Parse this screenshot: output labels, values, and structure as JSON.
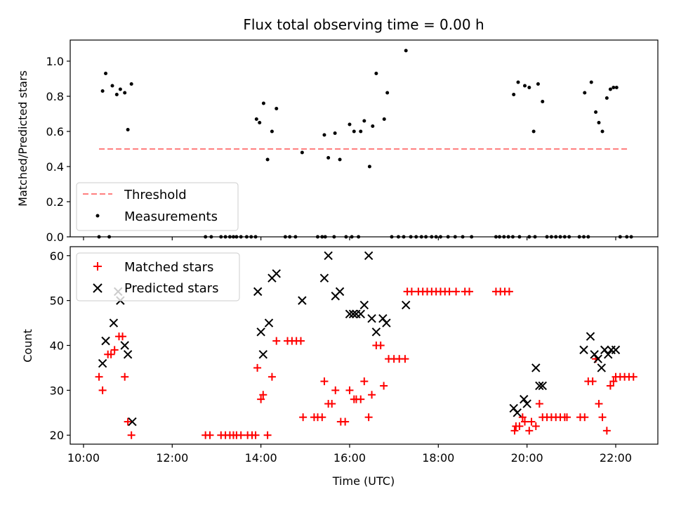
{
  "chart_data": [
    {
      "type": "scatter",
      "title": "Flux total observing time = 0.00 h",
      "xlabel": "",
      "ylabel": "Matched/Predicted stars",
      "xlim": [
        9.7,
        22.95
      ],
      "ylim": [
        0,
        1.12
      ],
      "yticks": [
        "0.0",
        "0.2",
        "0.4",
        "0.6",
        "0.8",
        "1.0"
      ],
      "legend_position": "lower-left",
      "threshold": {
        "name": "Threshold",
        "value": 0.5,
        "x": [
          10.35,
          22.3
        ],
        "color": "#ff7f7f"
      },
      "series": [
        {
          "name": "Measurements",
          "color": "#000000",
          "x": [
            10.43,
            10.5,
            10.65,
            10.75,
            10.83,
            10.93,
            11.0,
            11.08,
            13.9,
            13.97,
            14.06,
            14.15,
            14.25,
            14.35,
            14.93,
            15.43,
            15.52,
            15.67,
            15.78,
            16.0,
            16.1,
            16.25,
            16.33,
            16.45,
            16.52,
            16.6,
            16.78,
            16.85,
            17.27,
            19.7,
            19.8,
            19.95,
            20.05,
            20.15,
            20.25,
            20.35,
            21.3,
            21.45,
            21.55,
            21.62,
            21.7,
            21.8,
            21.88,
            21.95,
            22.02,
            10.35,
            10.58,
            12.75,
            12.88,
            13.1,
            13.2,
            13.3,
            13.38,
            13.45,
            13.55,
            13.68,
            13.78,
            13.88,
            14.55,
            14.65,
            14.78,
            15.28,
            15.38,
            15.45,
            15.65,
            15.92,
            16.05,
            16.2,
            16.95,
            17.1,
            17.22,
            17.38,
            17.5,
            17.62,
            17.72,
            17.85,
            17.95,
            18.05,
            18.22,
            18.38,
            18.55,
            18.75,
            19.3,
            19.38,
            19.48,
            19.58,
            19.68,
            19.83,
            20.05,
            20.18,
            20.45,
            20.55,
            20.65,
            20.75,
            20.85,
            20.95,
            21.18,
            21.28,
            21.38,
            22.1,
            22.25,
            22.35
          ],
          "y": [
            0.83,
            0.93,
            0.86,
            0.81,
            0.84,
            0.82,
            0.61,
            0.87,
            0.67,
            0.65,
            0.76,
            0.44,
            0.6,
            0.73,
            0.48,
            0.58,
            0.45,
            0.59,
            0.44,
            0.64,
            0.6,
            0.6,
            0.66,
            0.4,
            0.63,
            0.93,
            0.67,
            0.82,
            1.06,
            0.81,
            0.88,
            0.86,
            0.85,
            0.6,
            0.87,
            0.77,
            0.82,
            0.88,
            0.71,
            0.65,
            0.6,
            0.79,
            0.84,
            0.85,
            0.85,
            0,
            0,
            0,
            0,
            0,
            0,
            0,
            0,
            0,
            0,
            0,
            0,
            0,
            0,
            0,
            0,
            0,
            0,
            0,
            0,
            0,
            0,
            0,
            0,
            0,
            0,
            0,
            0,
            0,
            0,
            0,
            0,
            0,
            0,
            0,
            0,
            0,
            0,
            0,
            0,
            0,
            0,
            0,
            0,
            0,
            0,
            0,
            0,
            0,
            0,
            0,
            0,
            0,
            0,
            0,
            0,
            0
          ]
        }
      ]
    },
    {
      "type": "scatter",
      "title": "",
      "xlabel": "Time (UTC)",
      "ylabel": "Count",
      "xlim": [
        9.7,
        22.95
      ],
      "ylim": [
        18,
        62
      ],
      "yticks": [
        "20",
        "30",
        "40",
        "50",
        "60"
      ],
      "xticks": [
        {
          "value": 10,
          "label": "10:00"
        },
        {
          "value": 12,
          "label": "12:00"
        },
        {
          "value": 14,
          "label": "14:00"
        },
        {
          "value": 16,
          "label": "16:00"
        },
        {
          "value": 18,
          "label": "18:00"
        },
        {
          "value": 20,
          "label": "20:00"
        },
        {
          "value": 22,
          "label": "22:00"
        }
      ],
      "legend_position": "upper-left",
      "series": [
        {
          "name": "Matched stars",
          "marker": "plus",
          "color": "#ff0000",
          "x": [
            10.35,
            10.43,
            10.55,
            10.62,
            10.7,
            10.8,
            10.88,
            10.93,
            11.0,
            11.08,
            12.75,
            12.85,
            13.1,
            13.2,
            13.3,
            13.38,
            13.45,
            13.55,
            13.7,
            13.8,
            13.88,
            13.92,
            14.0,
            14.05,
            14.15,
            14.25,
            14.35,
            14.6,
            14.7,
            14.8,
            14.9,
            14.95,
            15.2,
            15.28,
            15.38,
            15.43,
            15.52,
            15.6,
            15.68,
            15.8,
            15.9,
            16.0,
            16.1,
            16.15,
            16.25,
            16.33,
            16.43,
            16.5,
            16.6,
            16.7,
            16.77,
            16.88,
            17.0,
            17.12,
            17.25,
            17.3,
            17.4,
            17.55,
            17.65,
            17.75,
            17.85,
            17.95,
            18.05,
            18.15,
            18.25,
            18.4,
            18.6,
            18.7,
            19.3,
            19.4,
            19.5,
            19.6,
            19.72,
            19.75,
            19.83,
            19.9,
            19.95,
            20.05,
            20.1,
            20.2,
            20.28,
            20.35,
            20.45,
            20.55,
            20.65,
            20.75,
            20.85,
            20.9,
            21.2,
            21.3,
            21.38,
            21.48,
            21.55,
            21.62,
            21.7,
            21.8,
            21.88,
            21.95,
            22.0,
            22.1,
            22.2,
            22.3,
            22.4
          ],
          "y": [
            33,
            30,
            38,
            38,
            39,
            42,
            42,
            33,
            23,
            20,
            20,
            20,
            20,
            20,
            20,
            20,
            20,
            20,
            20,
            20,
            20,
            35,
            28,
            29,
            20,
            33,
            41,
            41,
            41,
            41,
            41,
            24,
            24,
            24,
            24,
            32,
            27,
            27,
            30,
            23,
            23,
            30,
            28,
            28,
            28,
            32,
            24,
            29,
            40,
            40,
            31,
            37,
            37,
            37,
            37,
            52,
            52,
            52,
            52,
            52,
            52,
            52,
            52,
            52,
            52,
            52,
            52,
            52,
            52,
            52,
            52,
            52,
            21,
            22,
            22,
            24,
            23,
            21,
            23,
            22,
            27,
            24,
            24,
            24,
            24,
            24,
            24,
            24,
            24,
            24,
            32,
            32,
            37,
            27,
            24,
            21,
            31,
            32,
            33,
            33,
            33,
            33,
            33
          ]
        },
        {
          "name": "Predicted stars",
          "marker": "x",
          "color": "#000000",
          "x": [
            10.43,
            10.5,
            10.68,
            10.78,
            10.83,
            10.93,
            11.0,
            11.1,
            13.93,
            14.0,
            14.05,
            14.18,
            14.25,
            14.35,
            14.93,
            15.43,
            15.52,
            15.68,
            15.78,
            16.0,
            16.08,
            16.15,
            16.25,
            16.33,
            16.43,
            16.5,
            16.6,
            16.75,
            16.83,
            17.27,
            19.7,
            19.78,
            19.93,
            20.0,
            20.2,
            20.28,
            20.35,
            21.28,
            21.43,
            21.52,
            21.6,
            21.68,
            21.75,
            21.83,
            21.9,
            22.0
          ],
          "y": [
            36,
            41,
            45,
            52,
            50,
            40,
            38,
            23,
            52,
            43,
            38,
            45,
            55,
            56,
            50,
            55,
            60,
            51,
            52,
            47,
            47,
            47,
            47,
            49,
            60,
            46,
            43,
            46,
            45,
            49,
            26,
            25,
            28,
            27,
            35,
            31,
            31,
            39,
            42,
            38,
            37,
            35,
            39,
            38,
            39,
            39
          ]
        }
      ]
    }
  ]
}
